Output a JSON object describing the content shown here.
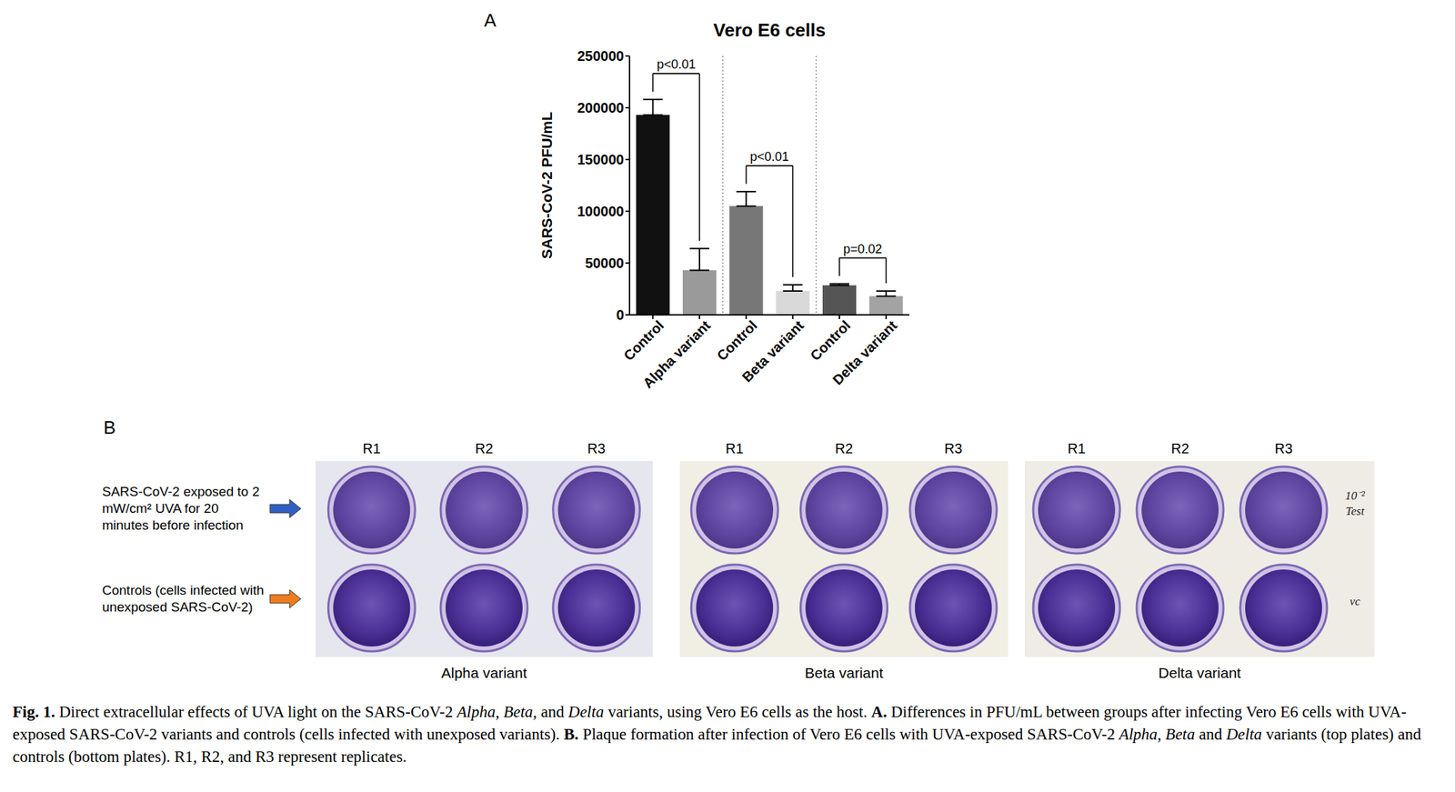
{
  "panel_labels": [
    "A",
    "B"
  ],
  "chart_data": {
    "type": "bar",
    "title": "Vero E6 cells",
    "ylabel": "SARS-CoV-2 PFU/mL",
    "categories": [
      "Control",
      "Alpha variant",
      "Control",
      "Beta variant",
      "Control",
      "Delta variant"
    ],
    "values": [
      193000,
      43000,
      105000,
      23000,
      28500,
      18000
    ],
    "errors": [
      15000,
      21000,
      14000,
      6000,
      1500,
      5000
    ],
    "colors": [
      "#111111",
      "#9a9a9a",
      "#777777",
      "#d9d9d9",
      "#555555",
      "#a3a3a3"
    ],
    "ylim": [
      0,
      250000
    ],
    "yticks": [
      0,
      50000,
      100000,
      150000,
      200000,
      250000
    ],
    "grid": false,
    "annotations": [
      {
        "text": "p<0.01",
        "between": [
          0,
          1
        ]
      },
      {
        "text": "p<0.01",
        "between": [
          2,
          3
        ]
      },
      {
        "text": "p=0.02",
        "between": [
          4,
          5
        ]
      }
    ]
  },
  "panel_b": {
    "row_labels": [
      "SARS-CoV-2 exposed to 2 mW/cm² UVA for 20 minutes before infection",
      "Controls (cells infected with unexposed SARS-CoV-2)"
    ],
    "groups": [
      {
        "name": "Alpha variant",
        "replicates": [
          "R1",
          "R2",
          "R3"
        ]
      },
      {
        "name": "Beta variant",
        "replicates": [
          "R1",
          "R2",
          "R3"
        ]
      },
      {
        "name": "Delta variant",
        "replicates": [
          "R1",
          "R2",
          "R3"
        ],
        "notes": [
          [
            "10⁻²",
            "Test"
          ],
          [
            "vc"
          ]
        ]
      }
    ]
  },
  "caption": [
    {
      "text": "Fig. 1.",
      "style": "bold"
    },
    {
      "text": " Direct extracellular effects of UVA light on the SARS-CoV-2 ",
      "style": "normal"
    },
    {
      "text": "Alpha,",
      "style": "italic"
    },
    {
      "text": " ",
      "style": "normal"
    },
    {
      "text": "Beta,",
      "style": "italic"
    },
    {
      "text": " and ",
      "style": "normal"
    },
    {
      "text": "Delta",
      "style": "italic"
    },
    {
      "text": " variants, using Vero E6 cells as the host. ",
      "style": "normal"
    },
    {
      "text": "A.",
      "style": "bold"
    },
    {
      "text": " Differences in PFU/mL between groups after infecting Vero E6 cells with UVA-exposed SARS-CoV-2 variants and controls (cells infected with unexposed variants). ",
      "style": "normal"
    },
    {
      "text": "B.",
      "style": "bold"
    },
    {
      "text": " Plaque formation after infection of Vero E6 cells with UVA-exposed SARS-CoV-2 ",
      "style": "normal"
    },
    {
      "text": "Alpha",
      "style": "italic"
    },
    {
      "text": ", ",
      "style": "normal"
    },
    {
      "text": "Beta",
      "style": "italic"
    },
    {
      "text": " and ",
      "style": "normal"
    },
    {
      "text": "Delta",
      "style": "italic"
    },
    {
      "text": " variants (top plates) and controls (bottom plates). R1, R2, and R3 represent replicates.",
      "style": "normal"
    }
  ]
}
